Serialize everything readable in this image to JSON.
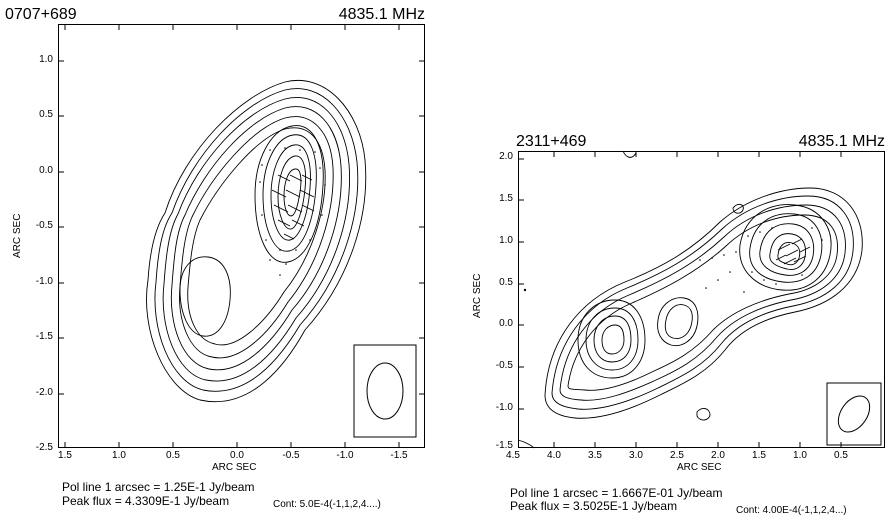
{
  "left": {
    "source": "0707+689",
    "frequency": "4835.1 MHz",
    "ylabel": "ARC SEC",
    "xlabel": "ARC SEC",
    "yticks": [
      "1.0",
      "0.5",
      "0.0",
      "-0.5",
      "-1.0",
      "-1.5",
      "-2.0",
      "-2.5"
    ],
    "xticks": [
      "1.5",
      "1.0",
      "0.5",
      "0.0",
      "-0.5",
      "-1.0",
      "-1.5"
    ],
    "pol_line": "Pol line 1 arcsec =  1.25E-1 Jy/beam",
    "peak_flux": "Peak flux =  4.3309E-1 Jy/beam",
    "contours": "Cont:  5.0E-4(-1,1,2,4....)"
  },
  "right": {
    "source": "2311+469",
    "frequency": "4835.1 MHz",
    "ylabel": "ARC SEC",
    "xlabel": "ARC SEC",
    "yticks": [
      "2.0",
      "1.5",
      "1.0",
      "0.5",
      "0.0",
      "-0.5",
      "-1.0",
      "-1.5"
    ],
    "xticks": [
      "4.5",
      "4.0",
      "3.5",
      "3.0",
      "2.5",
      "2.0",
      "1.5",
      "1.0",
      "0.5"
    ],
    "pol_line": "Pol line 1 arcsec =  1.6667E-01 Jy/beam",
    "peak_flux": "Peak flux =  3.5025E-1 Jy/beam",
    "contours": "Cont:  4.00E-4(-1,1,2,4...)"
  }
}
